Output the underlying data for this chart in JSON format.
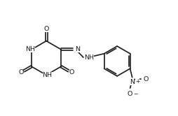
{
  "bg_color": "#ffffff",
  "line_color": "#1a1a1a",
  "lw": 1.2,
  "figsize": [
    2.54,
    1.66
  ],
  "dpi": 100,
  "fs": 6.8,
  "fs_s": 5.5,
  "xlim": [
    0.0,
    8.5
  ],
  "ylim": [
    0.5,
    5.5
  ]
}
